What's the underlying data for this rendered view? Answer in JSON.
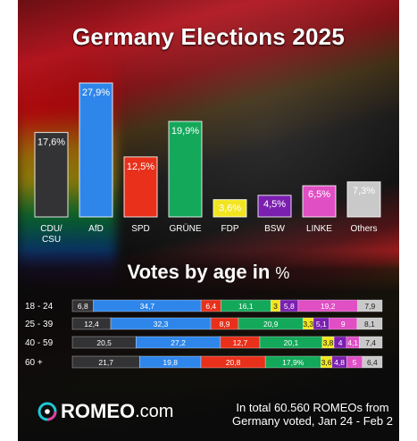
{
  "title": "Germany Elections 2025",
  "colors": {
    "CDU/CSU": "#333335",
    "AfD": "#2f86ea",
    "SPD": "#e8301a",
    "GRÜNE": "#14a85a",
    "FDP": "#f2e51f",
    "BSW": "#7a1fb0",
    "LINKE": "#e04fc4",
    "Others": "#c9c9c9"
  },
  "chart_data": [
    {
      "type": "bar",
      "title": "Germany Elections 2025",
      "categories": [
        "CDU/\nCSU",
        "AfD",
        "SPD",
        "GRÜNE",
        "FDP",
        "BSW",
        "LINKE",
        "Others"
      ],
      "category_keys": [
        "CDU/CSU",
        "AfD",
        "SPD",
        "GRÜNE",
        "FDP",
        "BSW",
        "LINKE",
        "Others"
      ],
      "values": [
        17.6,
        27.9,
        12.5,
        19.9,
        3.6,
        4.5,
        6.5,
        7.3
      ],
      "value_labels": [
        "17,6%",
        "27,9%",
        "12,5%",
        "19,9%",
        "3,6%",
        "4,5%",
        "6,5%",
        "7,3%"
      ]
    },
    {
      "type": "bar",
      "title": "Votes by age in",
      "title_unit": "%",
      "stacked": true,
      "orientation": "horizontal",
      "categories": [
        "18 - 24",
        "25 - 39",
        "40 - 59",
        "60 +"
      ],
      "series": [
        {
          "name": "CDU/CSU",
          "values": [
            6.8,
            12.4,
            20.5,
            21.7
          ],
          "labels": [
            "6,8",
            "12,4",
            "20,5",
            "21,7"
          ]
        },
        {
          "name": "AfD",
          "values": [
            34.7,
            32.3,
            27.2,
            19.8
          ],
          "labels": [
            "34,7",
            "32,3",
            "27,2",
            "19,8"
          ]
        },
        {
          "name": "SPD",
          "values": [
            6.4,
            8.9,
            12.7,
            20.8
          ],
          "labels": [
            "6,4",
            "8,9",
            "12,7",
            "20,8"
          ]
        },
        {
          "name": "GRÜNE",
          "values": [
            16.1,
            20.9,
            20.1,
            17.9
          ],
          "labels": [
            "16,1",
            "20,9",
            "20,1",
            "17,9%"
          ]
        },
        {
          "name": "FDP",
          "values": [
            3.0,
            3.3,
            3.8,
            3.6
          ],
          "labels": [
            "3",
            "3,3",
            "3,8",
            "3,6"
          ]
        },
        {
          "name": "BSW",
          "values": [
            5.8,
            5.1,
            4.0,
            4.8
          ],
          "labels": [
            "5,8",
            "5,1",
            "4",
            "4,8"
          ]
        },
        {
          "name": "LINKE",
          "values": [
            19.2,
            9.0,
            4.1,
            5.0
          ],
          "labels": [
            "19,2",
            "9",
            "4,1",
            "5"
          ]
        },
        {
          "name": "Others",
          "values": [
            7.9,
            8.1,
            7.4,
            6.4
          ],
          "labels": [
            "7,9",
            "8,1",
            "7,4",
            "6,4"
          ]
        }
      ]
    }
  ],
  "logo": {
    "name": "ROMEO",
    "domain": ".com"
  },
  "footer": [
    "In total 60.560 ROMEOs from",
    "Germany voted, Jan 24 - Feb 2"
  ]
}
